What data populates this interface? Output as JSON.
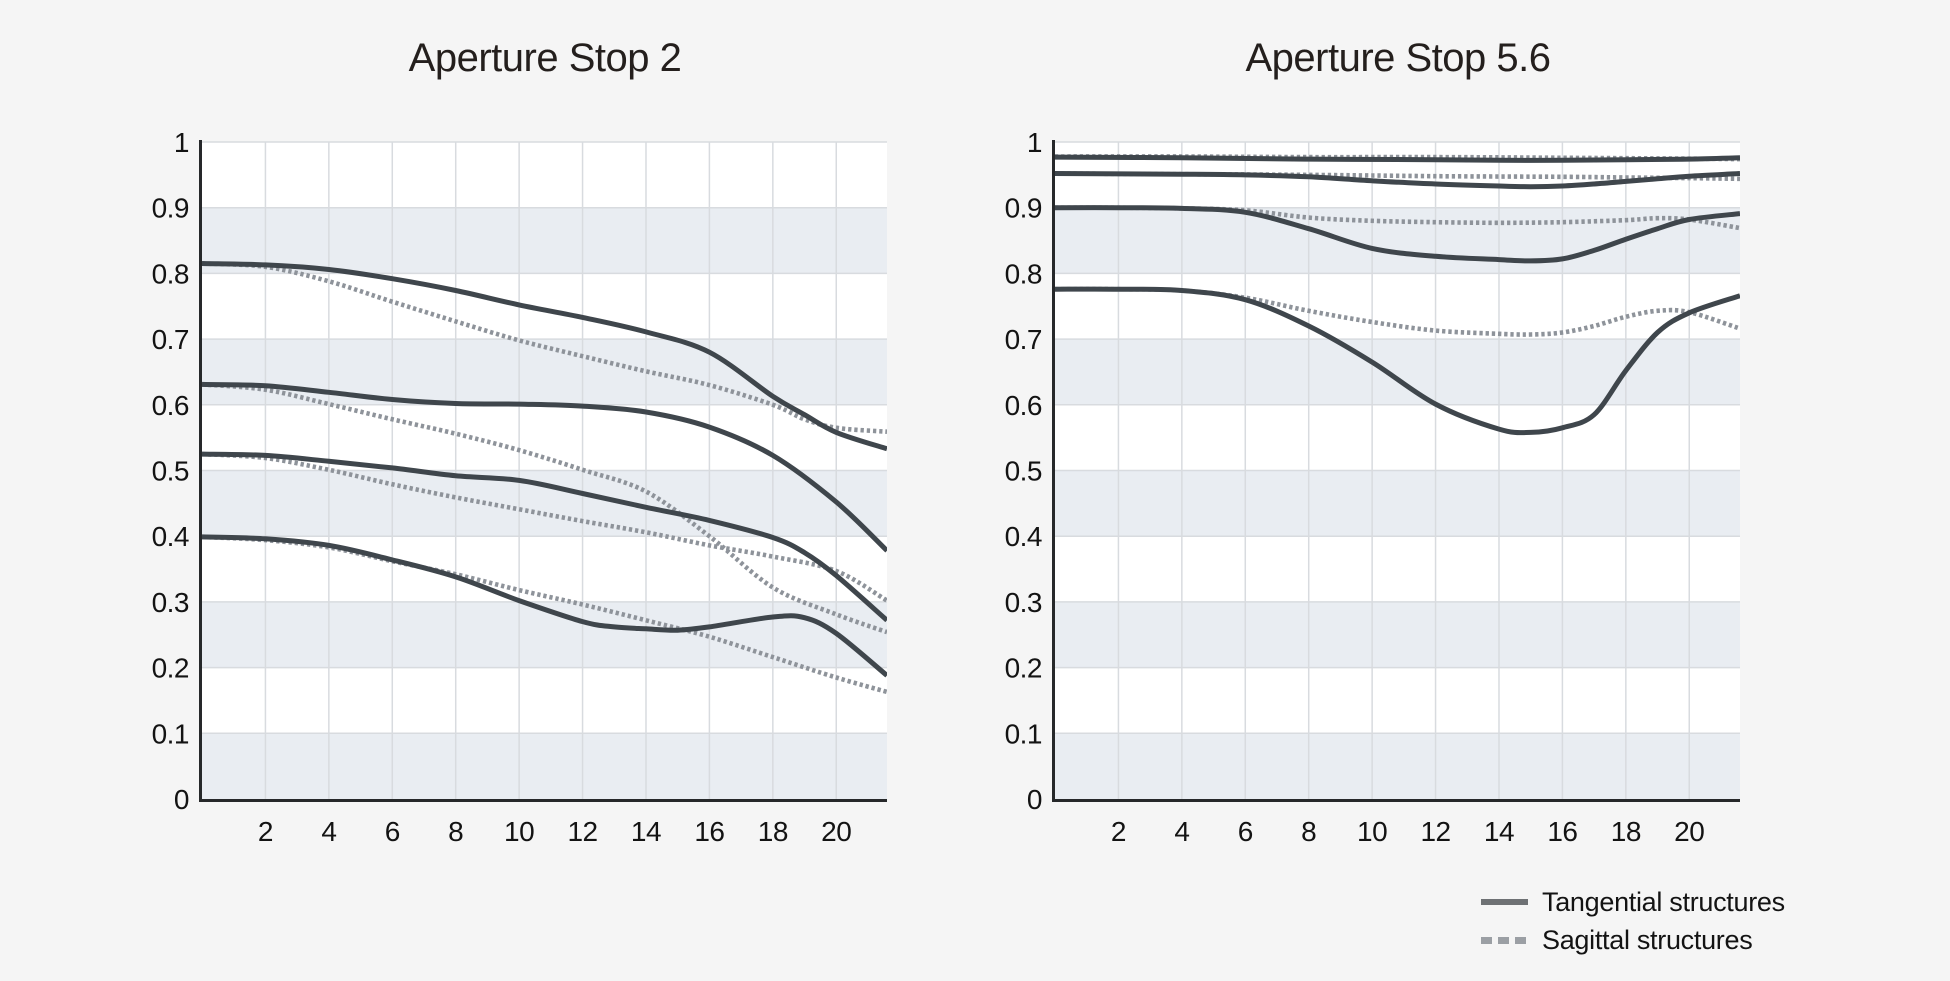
{
  "page": {
    "background_color": "#f5f5f5"
  },
  "colors": {
    "tangential_line": "#3f464c",
    "sagittal_line": "#8e939a",
    "plot_background": "#ffffff",
    "shaded_band": "#e9edf2",
    "gridline": "#d8dbdf",
    "axis": "#26282a",
    "tick_text": "#131313",
    "title_text": "#241f1d",
    "legend_solid_swatch": "#6e7174",
    "legend_dashed_swatch": "#9b9fa4"
  },
  "legend": {
    "position": "bottom-right",
    "items": [
      {
        "label": "Tangential structures",
        "style": "solid"
      },
      {
        "label": "Sagittal structures",
        "style": "dashed"
      }
    ]
  },
  "chart_data": [
    {
      "type": "line",
      "title": "Aperture Stop 2",
      "xlabel": "",
      "ylabel": "",
      "xlim": [
        0,
        21.6
      ],
      "ylim": [
        0,
        1
      ],
      "xticks": [
        2,
        4,
        6,
        8,
        10,
        12,
        14,
        16,
        18,
        20
      ],
      "yticks": [
        0,
        0.1,
        0.2,
        0.3,
        0.4,
        0.5,
        0.6,
        0.7,
        0.8,
        0.9,
        1
      ],
      "ytick_labels": [
        "0",
        "0.1",
        "0.2",
        "0.3",
        "0.4",
        "0.5",
        "0.6",
        "0.7",
        "0.8",
        "0.9",
        "1"
      ],
      "grid": true,
      "shaded_bands": [
        [
          0,
          0.1
        ],
        [
          0.2,
          0.3
        ],
        [
          0.4,
          0.5
        ],
        [
          0.6,
          0.7
        ],
        [
          0.8,
          0.9
        ]
      ],
      "series": [
        {
          "name": "sagittal-1",
          "structure": "sagittal",
          "points": [
            [
              0,
              0.815
            ],
            [
              2,
              0.81
            ],
            [
              4,
              0.788
            ],
            [
              6,
              0.757
            ],
            [
              8,
              0.727
            ],
            [
              10,
              0.698
            ],
            [
              12,
              0.674
            ],
            [
              14,
              0.651
            ],
            [
              16,
              0.63
            ],
            [
              18,
              0.6
            ],
            [
              19,
              0.578
            ],
            [
              20,
              0.565
            ],
            [
              21.6,
              0.559
            ]
          ]
        },
        {
          "name": "sagittal-2",
          "structure": "sagittal",
          "points": [
            [
              0,
              0.631
            ],
            [
              2,
              0.623
            ],
            [
              4,
              0.601
            ],
            [
              6,
              0.578
            ],
            [
              8,
              0.556
            ],
            [
              10,
              0.531
            ],
            [
              12,
              0.501
            ],
            [
              14,
              0.468
            ],
            [
              16,
              0.4
            ],
            [
              18,
              0.322
            ],
            [
              20,
              0.281
            ],
            [
              21.6,
              0.254
            ]
          ]
        },
        {
          "name": "sagittal-3",
          "structure": "sagittal",
          "points": [
            [
              0,
              0.525
            ],
            [
              2,
              0.519
            ],
            [
              4,
              0.501
            ],
            [
              6,
              0.479
            ],
            [
              8,
              0.459
            ],
            [
              10,
              0.441
            ],
            [
              12,
              0.423
            ],
            [
              14,
              0.406
            ],
            [
              16,
              0.386
            ],
            [
              18,
              0.369
            ],
            [
              20,
              0.347
            ],
            [
              21.6,
              0.302
            ]
          ]
        },
        {
          "name": "sagittal-4",
          "structure": "sagittal",
          "points": [
            [
              0,
              0.399
            ],
            [
              2,
              0.394
            ],
            [
              4,
              0.383
            ],
            [
              6,
              0.362
            ],
            [
              8,
              0.342
            ],
            [
              10,
              0.318
            ],
            [
              12,
              0.296
            ],
            [
              14,
              0.272
            ],
            [
              16,
              0.247
            ],
            [
              18,
              0.216
            ],
            [
              20,
              0.185
            ],
            [
              21.6,
              0.163
            ]
          ]
        },
        {
          "name": "tangential-1",
          "structure": "tangential",
          "points": [
            [
              0,
              0.815
            ],
            [
              2,
              0.813
            ],
            [
              4,
              0.806
            ],
            [
              6,
              0.792
            ],
            [
              8,
              0.774
            ],
            [
              10,
              0.752
            ],
            [
              12,
              0.733
            ],
            [
              14,
              0.711
            ],
            [
              16,
              0.68
            ],
            [
              18,
              0.613
            ],
            [
              19,
              0.585
            ],
            [
              20,
              0.558
            ],
            [
              21.6,
              0.533
            ]
          ]
        },
        {
          "name": "tangential-2",
          "structure": "tangential",
          "points": [
            [
              0,
              0.631
            ],
            [
              2,
              0.629
            ],
            [
              4,
              0.619
            ],
            [
              6,
              0.608
            ],
            [
              8,
              0.602
            ],
            [
              10,
              0.601
            ],
            [
              12,
              0.598
            ],
            [
              14,
              0.589
            ],
            [
              16,
              0.566
            ],
            [
              18,
              0.523
            ],
            [
              20,
              0.452
            ],
            [
              21.6,
              0.378
            ]
          ]
        },
        {
          "name": "tangential-3",
          "structure": "tangential",
          "points": [
            [
              0,
              0.525
            ],
            [
              2,
              0.523
            ],
            [
              4,
              0.514
            ],
            [
              6,
              0.504
            ],
            [
              8,
              0.492
            ],
            [
              10,
              0.485
            ],
            [
              12,
              0.465
            ],
            [
              14,
              0.444
            ],
            [
              16,
              0.424
            ],
            [
              18,
              0.398
            ],
            [
              19,
              0.375
            ],
            [
              20,
              0.34
            ],
            [
              21.6,
              0.272
            ]
          ]
        },
        {
          "name": "tangential-4",
          "structure": "tangential",
          "points": [
            [
              0,
              0.399
            ],
            [
              2,
              0.396
            ],
            [
              4,
              0.386
            ],
            [
              6,
              0.364
            ],
            [
              8,
              0.338
            ],
            [
              10,
              0.302
            ],
            [
              12,
              0.27
            ],
            [
              13,
              0.262
            ],
            [
              14,
              0.259
            ],
            [
              15,
              0.257
            ],
            [
              16,
              0.262
            ],
            [
              18,
              0.277
            ],
            [
              19,
              0.276
            ],
            [
              20,
              0.252
            ],
            [
              21.6,
              0.188
            ]
          ]
        }
      ]
    },
    {
      "type": "line",
      "title": "Aperture Stop 5.6",
      "xlabel": "",
      "ylabel": "",
      "xlim": [
        0,
        21.6
      ],
      "ylim": [
        0,
        1
      ],
      "xticks": [
        2,
        4,
        6,
        8,
        10,
        12,
        14,
        16,
        18,
        20
      ],
      "yticks": [
        0,
        0.1,
        0.2,
        0.3,
        0.4,
        0.5,
        0.6,
        0.7,
        0.8,
        0.9,
        1
      ],
      "ytick_labels": [
        "0",
        "0.1",
        "0.2",
        "0.3",
        "0.4",
        "0.5",
        "0.6",
        "0.7",
        "0.8",
        "0.9",
        "1"
      ],
      "grid": true,
      "shaded_bands": [
        [
          0,
          0.1
        ],
        [
          0.2,
          0.3
        ],
        [
          0.4,
          0.5
        ],
        [
          0.6,
          0.7
        ],
        [
          0.8,
          0.9
        ]
      ],
      "series": [
        {
          "name": "sagittal-1",
          "structure": "sagittal",
          "points": [
            [
              0,
              0.978
            ],
            [
              4,
              0.978
            ],
            [
              8,
              0.977
            ],
            [
              12,
              0.977
            ],
            [
              16,
              0.976
            ],
            [
              19,
              0.975
            ],
            [
              21.6,
              0.974
            ]
          ]
        },
        {
          "name": "sagittal-2",
          "structure": "sagittal",
          "points": [
            [
              0,
              0.952
            ],
            [
              4,
              0.951
            ],
            [
              8,
              0.95
            ],
            [
              12,
              0.948
            ],
            [
              16,
              0.947
            ],
            [
              18,
              0.946
            ],
            [
              20,
              0.945
            ],
            [
              21.6,
              0.944
            ]
          ]
        },
        {
          "name": "sagittal-3",
          "structure": "sagittal",
          "points": [
            [
              0,
              0.9
            ],
            [
              2,
              0.9
            ],
            [
              4,
              0.899
            ],
            [
              6,
              0.896
            ],
            [
              8,
              0.885
            ],
            [
              10,
              0.88
            ],
            [
              12,
              0.878
            ],
            [
              14,
              0.877
            ],
            [
              16,
              0.878
            ],
            [
              18,
              0.881
            ],
            [
              19,
              0.884
            ],
            [
              20,
              0.882
            ],
            [
              21.6,
              0.869
            ]
          ]
        },
        {
          "name": "sagittal-4",
          "structure": "sagittal",
          "points": [
            [
              0,
              0.776
            ],
            [
              2,
              0.776
            ],
            [
              4,
              0.774
            ],
            [
              6,
              0.763
            ],
            [
              8,
              0.743
            ],
            [
              10,
              0.726
            ],
            [
              12,
              0.713
            ],
            [
              14,
              0.708
            ],
            [
              15,
              0.707
            ],
            [
              16,
              0.71
            ],
            [
              17,
              0.72
            ],
            [
              18,
              0.734
            ],
            [
              19,
              0.743
            ],
            [
              20,
              0.741
            ],
            [
              21.6,
              0.716
            ]
          ]
        },
        {
          "name": "tangential-1",
          "structure": "tangential",
          "points": [
            [
              0,
              0.977
            ],
            [
              4,
              0.976
            ],
            [
              8,
              0.974
            ],
            [
              12,
              0.973
            ],
            [
              15,
              0.972
            ],
            [
              18,
              0.973
            ],
            [
              20,
              0.974
            ],
            [
              21.6,
              0.976
            ]
          ]
        },
        {
          "name": "tangential-2",
          "structure": "tangential",
          "points": [
            [
              0,
              0.952
            ],
            [
              4,
              0.951
            ],
            [
              6,
              0.95
            ],
            [
              8,
              0.947
            ],
            [
              10,
              0.941
            ],
            [
              12,
              0.936
            ],
            [
              14,
              0.933
            ],
            [
              15,
              0.932
            ],
            [
              16,
              0.933
            ],
            [
              17,
              0.936
            ],
            [
              18,
              0.94
            ],
            [
              19,
              0.944
            ],
            [
              20,
              0.948
            ],
            [
              21.6,
              0.952
            ]
          ]
        },
        {
          "name": "tangential-3",
          "structure": "tangential",
          "points": [
            [
              0,
              0.9
            ],
            [
              2,
              0.9
            ],
            [
              4,
              0.899
            ],
            [
              6,
              0.893
            ],
            [
              8,
              0.868
            ],
            [
              10,
              0.838
            ],
            [
              12,
              0.826
            ],
            [
              14,
              0.821
            ],
            [
              15,
              0.819
            ],
            [
              16,
              0.822
            ],
            [
              17,
              0.835
            ],
            [
              18,
              0.852
            ],
            [
              19,
              0.868
            ],
            [
              20,
              0.882
            ],
            [
              21.6,
              0.891
            ]
          ]
        },
        {
          "name": "tangential-4",
          "structure": "tangential",
          "points": [
            [
              0,
              0.776
            ],
            [
              2,
              0.776
            ],
            [
              4,
              0.774
            ],
            [
              6,
              0.76
            ],
            [
              8,
              0.72
            ],
            [
              10,
              0.665
            ],
            [
              12,
              0.601
            ],
            [
              14,
              0.563
            ],
            [
              15,
              0.558
            ],
            [
              16,
              0.565
            ],
            [
              17,
              0.585
            ],
            [
              18,
              0.652
            ],
            [
              19,
              0.71
            ],
            [
              20,
              0.74
            ],
            [
              21.6,
              0.766
            ]
          ]
        }
      ]
    }
  ]
}
